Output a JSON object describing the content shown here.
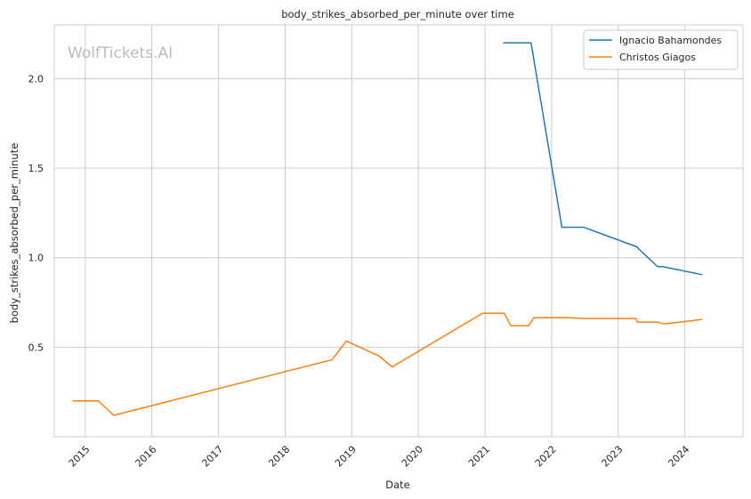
{
  "chart_data": {
    "type": "line",
    "title": "body_strikes_absorbed_per_minute over time",
    "xlabel": "Date",
    "ylabel": "body_strikes_absorbed_per_minute",
    "watermark": "WolfTickets.AI",
    "x_ticks": [
      "2015",
      "2016",
      "2017",
      "2018",
      "2019",
      "2020",
      "2021",
      "2022",
      "2023",
      "2024"
    ],
    "y_ticks": [
      "0.5",
      "1.0",
      "1.5",
      "2.0"
    ],
    "xlim": [
      "2014-07-15",
      "2024-11-15"
    ],
    "ylim": [
      0.0,
      2.3
    ],
    "grid": true,
    "legend_position": "top-right",
    "series": [
      {
        "name": "Ignacio Bahamondes",
        "color": "#1f77b4",
        "points": [
          [
            "2021-04-10",
            2.2
          ],
          [
            "2021-09-10",
            2.2
          ],
          [
            "2022-02-26",
            1.17
          ],
          [
            "2022-06-25",
            1.17
          ],
          [
            "2023-04-15",
            1.06
          ],
          [
            "2023-04-22",
            1.05
          ],
          [
            "2023-08-05",
            0.95
          ],
          [
            "2023-09-02",
            0.95
          ],
          [
            "2024-04-06",
            0.905
          ]
        ]
      },
      {
        "name": "Christos Giagos",
        "color": "#ff7f0e",
        "points": [
          [
            "2014-10-25",
            0.2
          ],
          [
            "2015-03-14",
            0.2
          ],
          [
            "2015-06-06",
            0.12
          ],
          [
            "2018-09-15",
            0.43
          ],
          [
            "2018-12-02",
            0.535
          ],
          [
            "2019-06-01",
            0.45
          ],
          [
            "2019-08-10",
            0.39
          ],
          [
            "2020-12-19",
            0.69
          ],
          [
            "2021-04-17",
            0.69
          ],
          [
            "2021-05-22",
            0.62
          ],
          [
            "2021-08-28",
            0.62
          ],
          [
            "2021-09-25",
            0.665
          ],
          [
            "2022-04-09",
            0.665
          ],
          [
            "2022-06-25",
            0.66
          ],
          [
            "2023-04-08",
            0.66
          ],
          [
            "2023-04-15",
            0.64
          ],
          [
            "2023-08-05",
            0.64
          ],
          [
            "2023-09-09",
            0.63
          ],
          [
            "2024-04-06",
            0.655
          ]
        ]
      }
    ]
  }
}
